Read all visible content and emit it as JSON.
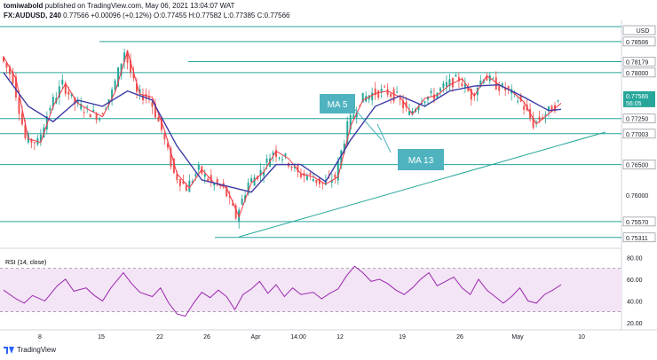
{
  "header": {
    "author": "tomiwabold",
    "published": "published on TradingView.com, May 06, 2021 13:04:07 WAT",
    "symbol": "FX:AUDUSD, 240",
    "last": "0.77566",
    "change": "+0.00096 (+0.12%)",
    "ohlc": "O:0.77455 H:0.77582 L:0.77385 C:0.77566"
  },
  "footer": {
    "brand": "TradingView"
  },
  "colors": {
    "up": "#26a69a",
    "down": "#ef5350",
    "ma5": "#f23645",
    "ma13": "#3c3ba6",
    "level": "#26a69a",
    "rsi": "#9c27b0",
    "rsi_band": "#f3e5f5",
    "callout": "#4fb3bf"
  },
  "chart_data": [
    {
      "type": "line",
      "description_visible": "AUDUSD 4H candles with moving averages",
      "series": [
        {
          "name": "MA 5",
          "points": [
            [
              0,
              0.7826
            ],
            [
              6,
              0.779
            ],
            [
              12,
              0.7692
            ],
            [
              18,
              0.7686
            ],
            [
              24,
              0.7745
            ],
            [
              30,
              0.7782
            ],
            [
              36,
              0.775
            ],
            [
              42,
              0.7738
            ],
            [
              48,
              0.7728
            ],
            [
              54,
              0.7768
            ],
            [
              60,
              0.7835
            ],
            [
              66,
              0.7765
            ],
            [
              72,
              0.776
            ],
            [
              78,
              0.7706
            ],
            [
              84,
              0.7635
            ],
            [
              90,
              0.7612
            ],
            [
              96,
              0.7642
            ],
            [
              102,
              0.762
            ],
            [
              108,
              0.7612
            ],
            [
              114,
              0.7565
            ],
            [
              120,
              0.762
            ],
            [
              126,
              0.7638
            ],
            [
              132,
              0.7672
            ],
            [
              138,
              0.766
            ],
            [
              144,
              0.7635
            ],
            [
              150,
              0.763
            ],
            [
              156,
              0.7618
            ],
            [
              162,
              0.763
            ],
            [
              168,
              0.7712
            ],
            [
              174,
              0.7755
            ],
            [
              180,
              0.7766
            ],
            [
              186,
              0.777
            ],
            [
              192,
              0.776
            ],
            [
              198,
              0.7732
            ],
            [
              204,
              0.7758
            ],
            [
              210,
              0.7763
            ],
            [
              216,
              0.778
            ],
            [
              222,
              0.779
            ],
            [
              228,
              0.7762
            ],
            [
              234,
              0.7795
            ],
            [
              240,
              0.778
            ],
            [
              246,
              0.777
            ],
            [
              252,
              0.7752
            ],
            [
              258,
              0.7716
            ],
            [
              264,
              0.7733
            ],
            [
              270,
              0.775
            ]
          ]
        },
        {
          "name": "MA 13",
          "points": [
            [
              0,
              0.78
            ],
            [
              12,
              0.7745
            ],
            [
              24,
              0.772
            ],
            [
              36,
              0.7755
            ],
            [
              48,
              0.7745
            ],
            [
              60,
              0.777
            ],
            [
              72,
              0.7755
            ],
            [
              84,
              0.768
            ],
            [
              96,
              0.7625
            ],
            [
              108,
              0.7615
            ],
            [
              120,
              0.7605
            ],
            [
              132,
              0.765
            ],
            [
              144,
              0.765
            ],
            [
              156,
              0.7622
            ],
            [
              168,
              0.769
            ],
            [
              180,
              0.7745
            ],
            [
              192,
              0.7762
            ],
            [
              204,
              0.7745
            ],
            [
              216,
              0.777
            ],
            [
              228,
              0.7778
            ],
            [
              240,
              0.778
            ],
            [
              252,
              0.776
            ],
            [
              264,
              0.7738
            ],
            [
              270,
              0.774
            ]
          ]
        }
      ],
      "horizontal_levels": [
        "0.78506",
        "0.78179",
        "0.78000",
        "0.77250",
        "0.77003",
        "0.76500",
        "0.75570",
        "0.75311"
      ],
      "trendline": {
        "from": [
          114,
          0.7532
        ],
        "to": [
          276,
          0.77
        ]
      },
      "annotations": [
        "MA 5",
        "MA 13"
      ],
      "last_price_label": "0.77566",
      "countdown_label": "56:05",
      "currency_label": "USD",
      "y_tick_labels": [
        "0.78506",
        "0.78179",
        "0.78000",
        "0.77250",
        "0.77003",
        "0.76500",
        "0.76000",
        "0.75570",
        "0.75311"
      ],
      "x_tick_labels": [
        "8",
        "15",
        "22",
        "26",
        "Apr",
        "14:00",
        "12",
        "19",
        "26",
        "May",
        "10"
      ],
      "ylim": [
        0.7525,
        0.7875
      ]
    },
    {
      "type": "line",
      "title": "RSI (14, close)",
      "series": [
        {
          "name": "RSI",
          "points": [
            [
              0,
              50
            ],
            [
              6,
              42
            ],
            [
              10,
              38
            ],
            [
              14,
              45
            ],
            [
              20,
              40
            ],
            [
              26,
              54
            ],
            [
              30,
              60
            ],
            [
              34,
              49
            ],
            [
              40,
              52
            ],
            [
              44,
              45
            ],
            [
              48,
              40
            ],
            [
              52,
              52
            ],
            [
              58,
              66
            ],
            [
              62,
              56
            ],
            [
              66,
              48
            ],
            [
              72,
              44
            ],
            [
              76,
              52
            ],
            [
              80,
              38
            ],
            [
              84,
              28
            ],
            [
              88,
              26
            ],
            [
              92,
              38
            ],
            [
              96,
              48
            ],
            [
              100,
              43
            ],
            [
              104,
              50
            ],
            [
              108,
              44
            ],
            [
              112,
              32
            ],
            [
              116,
              46
            ],
            [
              120,
              51
            ],
            [
              124,
              58
            ],
            [
              128,
              47
            ],
            [
              132,
              55
            ],
            [
              136,
              44
            ],
            [
              140,
              52
            ],
            [
              144,
              46
            ],
            [
              150,
              48
            ],
            [
              154,
              42
            ],
            [
              158,
              47
            ],
            [
              162,
              51
            ],
            [
              166,
              63
            ],
            [
              170,
              72
            ],
            [
              174,
              66
            ],
            [
              178,
              58
            ],
            [
              182,
              60
            ],
            [
              186,
              56
            ],
            [
              190,
              50
            ],
            [
              194,
              46
            ],
            [
              198,
              52
            ],
            [
              202,
              60
            ],
            [
              206,
              66
            ],
            [
              210,
              54
            ],
            [
              214,
              58
            ],
            [
              218,
              62
            ],
            [
              222,
              52
            ],
            [
              226,
              46
            ],
            [
              230,
              60
            ],
            [
              234,
              50
            ],
            [
              238,
              44
            ],
            [
              242,
              38
            ],
            [
              246,
              44
            ],
            [
              250,
              52
            ],
            [
              254,
              40
            ],
            [
              258,
              38
            ],
            [
              262,
              46
            ],
            [
              266,
              50
            ],
            [
              270,
              55
            ]
          ]
        }
      ],
      "bands": [
        30,
        70
      ],
      "y_tick_labels": [
        "80.00",
        "60.00",
        "40.00",
        "20.00"
      ],
      "ylim": [
        15,
        82
      ]
    }
  ]
}
